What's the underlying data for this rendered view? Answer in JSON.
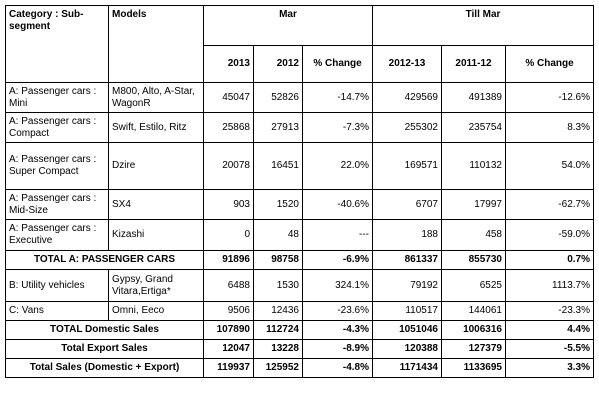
{
  "headers": {
    "category": "Category : Sub-segment",
    "models": "Models",
    "mar": "Mar",
    "till_mar": "Till Mar",
    "y2013": "2013",
    "y2012": "2012",
    "pct_change": "% Change",
    "y2012_13": "2012-13",
    "y2011_12": "2011-12",
    "pct_change2": "% Change"
  },
  "rows": [
    {
      "category": "A: Passenger cars : Mini",
      "models": "M800, Alto, A-Star, WagonR",
      "m2013": "45047",
      "m2012": "52826",
      "mpct": "-14.7%",
      "t1213": "429569",
      "t1112": "491389",
      "tpct": "-12.6%"
    },
    {
      "category": "A: Passenger cars : Compact",
      "models": "Swift, Estilo, Ritz",
      "m2013": "25868",
      "m2012": "27913",
      "mpct": "-7.3%",
      "t1213": "255302",
      "t1112": "235754",
      "tpct": "8.3%"
    },
    {
      "category": "A: Passenger cars : Super Compact",
      "models": "Dzire",
      "m2013": "20078",
      "m2012": "16451",
      "mpct": "22.0%",
      "t1213": "169571",
      "t1112": "110132",
      "tpct": "54.0%"
    },
    {
      "category": "A: Passenger cars : Mid-Size",
      "models": "SX4",
      "m2013": "903",
      "m2012": "1520",
      "mpct": "-40.6%",
      "t1213": "6707",
      "t1112": "17997",
      "tpct": "-62.7%"
    },
    {
      "category": "A: Passenger cars : Executive",
      "models": "Kizashi",
      "m2013": "0",
      "m2012": "48",
      "mpct": "---",
      "t1213": "188",
      "t1112": "458",
      "tpct": "-59.0%"
    }
  ],
  "total_a": {
    "label": "TOTAL A: PASSENGER CARS",
    "m2013": "91896",
    "m2012": "98758",
    "mpct": "-6.9%",
    "t1213": "861337",
    "t1112": "855730",
    "tpct": "0.7%"
  },
  "rows_b": [
    {
      "category": "B: Utility vehicles",
      "models": "Gypsy, Grand Vitara,Ertiga*",
      "m2013": "6488",
      "m2012": "1530",
      "mpct": "324.1%",
      "t1213": "79192",
      "t1112": "6525",
      "tpct": "1113.7%"
    },
    {
      "category": "C: Vans",
      "models": "Omni, Eeco",
      "m2013": "9506",
      "m2012": "12436",
      "mpct": "-23.6%",
      "t1213": "110517",
      "t1112": "144061",
      "tpct": "-23.3%"
    }
  ],
  "totals": [
    {
      "label": "TOTAL Domestic Sales",
      "m2013": "107890",
      "m2012": "112724",
      "mpct": "-4.3%",
      "t1213": "1051046",
      "t1112": "1006316",
      "tpct": "4.4%"
    },
    {
      "label": "Total Export Sales",
      "m2013": "12047",
      "m2012": "13228",
      "mpct": "-8.9%",
      "t1213": "120388",
      "t1112": "127379",
      "tpct": "-5.5%"
    },
    {
      "label": "Total Sales (Domestic + Export)",
      "m2013": "119937",
      "m2012": "125952",
      "mpct": "-4.8%",
      "t1213": "1171434",
      "t1112": "1133695",
      "tpct": "3.3%"
    }
  ]
}
